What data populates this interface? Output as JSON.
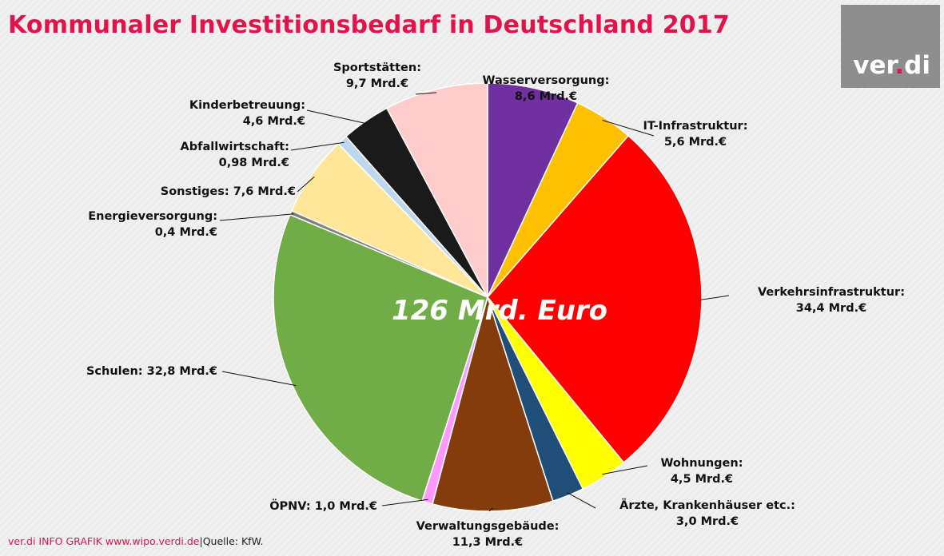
{
  "title": "Kommunaler Investitionsbedarf in Deutschland 2017",
  "logo": {
    "text_a": "ver",
    "text_dot": ".",
    "text_b": "di"
  },
  "footer": {
    "brand": "ver.di INFO GRAFIK www.wipo.verdi.de",
    "separator": "|",
    "source": "Quelle: KfW."
  },
  "chart_data": {
    "type": "pie",
    "title": "Kommunaler Investitionsbedarf in Deutschland 2017",
    "center_label": "126 Mrd. Euro",
    "unit": "Mrd.€",
    "slices": [
      {
        "name": "Wasserversorgung",
        "value": 8.6,
        "color": "#7030a0",
        "label": [
          "Wasserversorgung:",
          "8,6 Mrd.€"
        ]
      },
      {
        "name": "IT-Infrastruktur",
        "value": 5.6,
        "color": "#ffc000",
        "label": [
          "IT-Infrastruktur:",
          "5,6 Mrd.€"
        ]
      },
      {
        "name": "Verkehrsinfrastruktur",
        "value": 34.4,
        "color": "#ff0000",
        "label": [
          "Verkehrsinfrastruktur:",
          "34,4 Mrd.€"
        ]
      },
      {
        "name": "Wohnungen",
        "value": 4.5,
        "color": "#ffff00",
        "label": [
          "Wohnungen:",
          "4,5 Mrd.€"
        ]
      },
      {
        "name": "Ärzte, Krankenhäuser etc.",
        "value": 3.0,
        "color": "#1f4e79",
        "label": [
          "Ärzte, Krankenhäuser etc.:",
          "3,0 Mrd.€"
        ]
      },
      {
        "name": "Verwaltungsgebäude",
        "value": 11.3,
        "color": "#843c0c",
        "label": [
          "Verwaltungsgebäude:",
          "11,3 Mrd.€"
        ]
      },
      {
        "name": "ÖPNV",
        "value": 1.0,
        "color": "#ff99ff",
        "label": [
          "ÖPNV:  1,0 Mrd.€"
        ]
      },
      {
        "name": "Schulen",
        "value": 32.8,
        "color": "#70ad47",
        "label": [
          "Schulen: 32,8 Mrd.€"
        ]
      },
      {
        "name": "Energieversorgung",
        "value": 0.4,
        "color": "#7f7f7f",
        "label": [
          "Energieversorgung:",
          "0,4 Mrd.€"
        ]
      },
      {
        "name": "Sonstiges",
        "value": 7.6,
        "color": "#ffe699",
        "label": [
          "Sonstiges:  7,6 Mrd.€"
        ]
      },
      {
        "name": "Abfallwirtschaft",
        "value": 0.98,
        "color": "#bdd7ee",
        "label": [
          "Abfallwirtschaft:",
          "0,98 Mrd.€"
        ]
      },
      {
        "name": "Kinderbetreuung",
        "value": 4.6,
        "color": "#1a1a1a",
        "label": [
          "Kinderbetreuung:",
          "4,6 Mrd.€"
        ]
      },
      {
        "name": "Sportstätten",
        "value": 9.7,
        "color": "#ffcccc",
        "label": [
          "Sportstätten:",
          "9,7 Mrd.€"
        ]
      }
    ]
  }
}
